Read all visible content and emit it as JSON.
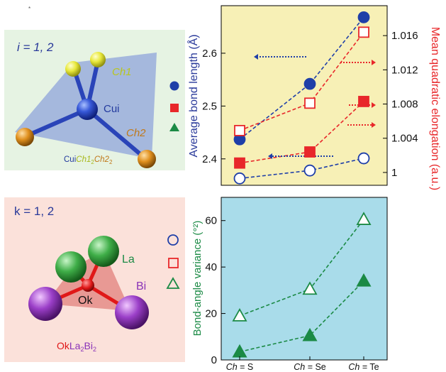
{
  "corner_mark": "*",
  "panel_cu": {
    "index_label": "i = 1, 2",
    "labels": {
      "ch1": "Ch1",
      "metal": "Cui",
      "ch2": "Ch2"
    },
    "formula": {
      "cu": "Cui",
      "ch1": "Ch1",
      "sub1": "2",
      "ch2": "Ch2",
      "sub2": "2"
    },
    "legend": [
      {
        "marker": "circle",
        "color": "#1f3fa8"
      },
      {
        "marker": "square",
        "color": "#e8272a"
      },
      {
        "marker": "triangle",
        "color": "#1b8a45"
      }
    ]
  },
  "panel_o": {
    "index_label": "k = 1, 2",
    "labels": {
      "la": "La",
      "bi": "Bi",
      "center": "Ok"
    },
    "formula": {
      "ok": "Ok",
      "la": "La",
      "sub1": "2",
      "bi": "Bi",
      "sub2": "2"
    },
    "legend": [
      {
        "marker": "circle-open",
        "color": "#1f3fa8"
      },
      {
        "marker": "square-open",
        "color": "#e8272a"
      },
      {
        "marker": "triangle-open",
        "color": "#1b8a45"
      }
    ]
  },
  "chart_data": [
    {
      "type": "line",
      "categories": [
        "Ch = S",
        "Ch = Se",
        "Ch = Te"
      ],
      "ylabel": "Average bond length (Å)",
      "ylim": [
        2.35,
        2.69
      ],
      "yticks": [
        2.4,
        2.5,
        2.6
      ],
      "y2label": "Mean quadratic elongation (a.u.)",
      "y2lim": [
        0.9985,
        1.0195
      ],
      "y2ticks": [
        "1",
        "1.004",
        "1.008",
        "1.012",
        "1.016"
      ],
      "y2tick_values": [
        1.0,
        1.004,
        1.008,
        1.012,
        1.016
      ],
      "grid": false,
      "background": "#f7f0b6",
      "series": [
        {
          "axis": "left",
          "marker": "circle",
          "filled": true,
          "color": "#1f3fa8",
          "values": [
            2.437,
            2.542,
            2.668
          ]
        },
        {
          "axis": "left",
          "marker": "circle",
          "filled": false,
          "color": "#1f3fa8",
          "values": [
            2.363,
            2.378,
            2.401
          ]
        },
        {
          "axis": "right",
          "marker": "square",
          "filled": true,
          "color": "#e8272a",
          "values": [
            1.0011,
            1.0024,
            1.0083
          ]
        },
        {
          "axis": "right",
          "marker": "square",
          "filled": false,
          "color": "#e8272a",
          "values": [
            1.0049,
            1.0081,
            1.0164
          ]
        }
      ],
      "arrows": [
        {
          "color": "#1f3fa8",
          "direction": "left"
        },
        {
          "color": "#1f3fa8",
          "direction": "left"
        },
        {
          "color": "#e8272a",
          "direction": "right"
        },
        {
          "color": "#e8272a",
          "direction": "right"
        },
        {
          "color": "#e8272a",
          "direction": "right"
        }
      ]
    },
    {
      "type": "line",
      "categories": [
        "Ch = S",
        "Ch = Se",
        "Ch = Te"
      ],
      "ylabel": "Bond-angle variance (°²)",
      "ylim": [
        0,
        70
      ],
      "yticks": [
        0,
        20,
        40,
        60
      ],
      "grid": false,
      "background": "#a9dcea",
      "series": [
        {
          "marker": "triangle",
          "filled": false,
          "color": "#1b8a45",
          "values": [
            19,
            30.5,
            60.5
          ]
        },
        {
          "marker": "triangle",
          "filled": true,
          "color": "#1b8a45",
          "values": [
            3.5,
            10.5,
            34
          ]
        }
      ]
    }
  ]
}
